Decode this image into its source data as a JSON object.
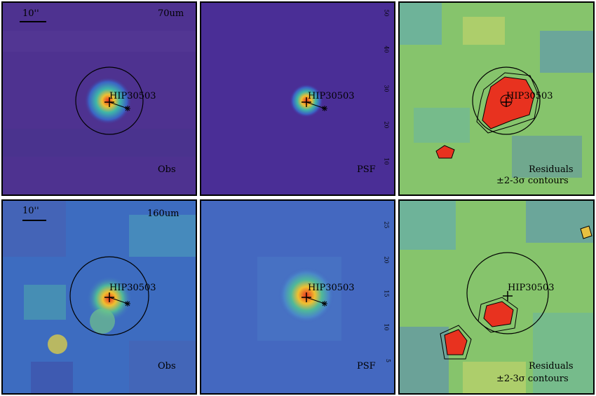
{
  "target": "HIP30503",
  "scalebar_label": "10''",
  "rows": [
    {
      "band": "70um",
      "panels": [
        {
          "label": "Obs"
        },
        {
          "label": "PSF"
        },
        {
          "label_line1": "Residuals",
          "label_line2": "±2-3σ contours"
        }
      ],
      "ticks": [
        "10",
        "20",
        "30",
        "40",
        "50"
      ]
    },
    {
      "band": "160um",
      "panels": [
        {
          "label": "Obs"
        },
        {
          "label": "PSF"
        },
        {
          "label_line1": "Residuals",
          "label_line2": "±2-3σ contours"
        }
      ],
      "ticks": [
        "5",
        "10",
        "15",
        "20",
        "25"
      ]
    }
  ],
  "colors": {
    "bg_dark": "#4b2f8f",
    "bg_psf_70": "#4a2e96",
    "bg_psf_160": "#3f6ec2",
    "peak": "#e8321f",
    "mid": "#f0c030",
    "resid_bg": "#8ccc6a"
  }
}
